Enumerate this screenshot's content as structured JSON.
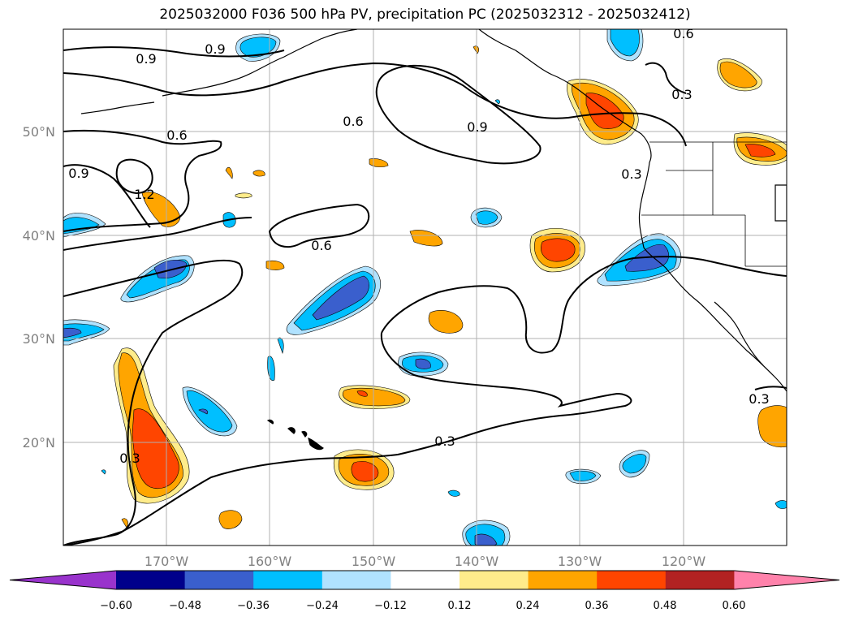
{
  "title": "2025032000 F036 500 hPa PV, precipitation PC (2025032312 - 2025032412)",
  "lat_ticks": [
    "50°N",
    "40°N",
    "30°N",
    "20°N"
  ],
  "lon_ticks": [
    "170°W",
    "160°W",
    "150°W",
    "140°W",
    "130°W",
    "120°W"
  ],
  "contour_labels": [
    "0.9",
    "0.9",
    "0.6",
    "0.6",
    "0.9",
    "0.6",
    "0.9",
    "1.2",
    "0.3",
    "0.3",
    "0.6",
    "0.3",
    "0.3",
    "0.3"
  ],
  "colorbar": {
    "ticks": [
      "−0.60",
      "−0.48",
      "−0.36",
      "−0.24",
      "−0.12",
      "0.12",
      "0.24",
      "0.36",
      "0.48",
      "0.60"
    ],
    "colors": [
      "#9933cc",
      "#00008b",
      "#3a5fcd",
      "#00bfff",
      "#b0e2ff",
      "#ffffff",
      "#ffec8b",
      "#ffa500",
      "#ff4500",
      "#b22222",
      "#ff82ab"
    ]
  }
}
